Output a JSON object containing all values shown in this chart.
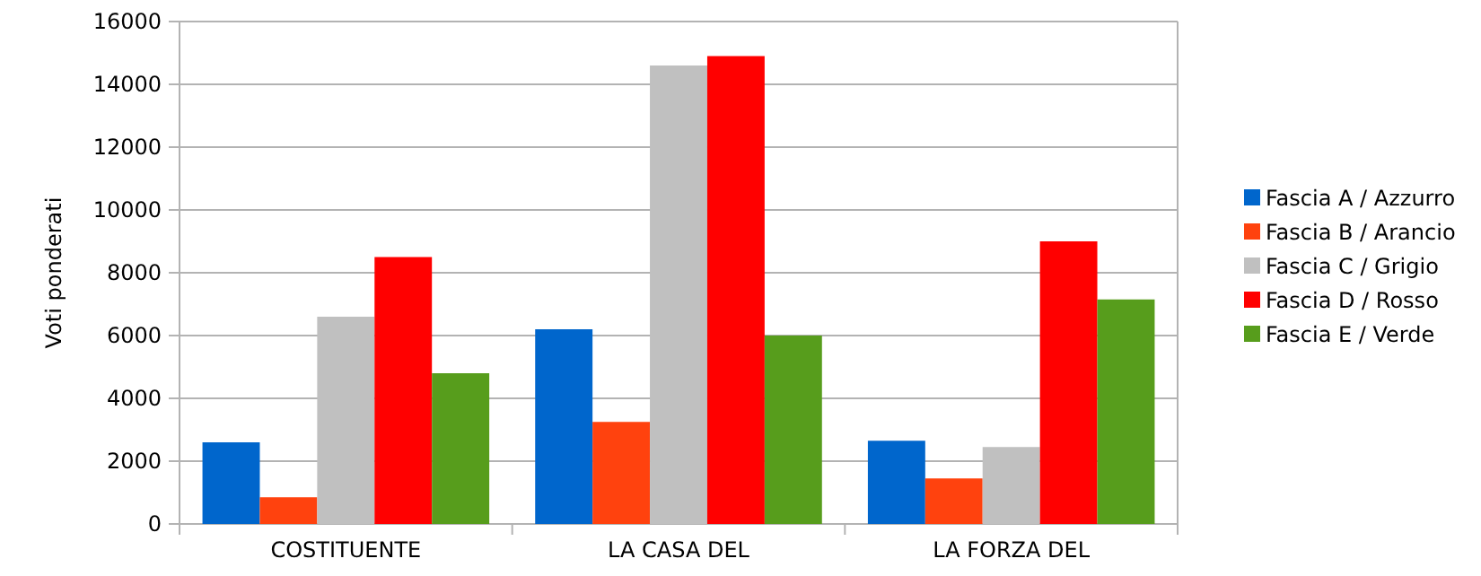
{
  "chart_data": {
    "type": "bar",
    "ylabel": "Voti ponderati",
    "categories": [
      "COSTITUENTE",
      "LA CASA DEL",
      "LA FORZA DEL"
    ],
    "series": [
      {
        "name": "Fascia A / Azzurro",
        "color": "#0066cc",
        "values": [
          2600,
          6200,
          2650
        ]
      },
      {
        "name": "Fascia B / Arancio",
        "color": "#ff420e",
        "values": [
          850,
          3250,
          1450
        ]
      },
      {
        "name": "Fascia C / Grigio",
        "color": "#c0c0c0",
        "values": [
          6600,
          14600,
          2450
        ]
      },
      {
        "name": "Fascia D / Rosso",
        "color": "#ff0000",
        "values": [
          8500,
          14900,
          9000
        ]
      },
      {
        "name": "Fascia E / Verde",
        "color": "#579d1c",
        "values": [
          4800,
          6000,
          7150
        ]
      }
    ],
    "ylim": [
      0,
      16000
    ],
    "yticks": [
      0,
      2000,
      4000,
      6000,
      8000,
      10000,
      12000,
      14000,
      16000
    ],
    "grid": "y",
    "legend": "right"
  }
}
